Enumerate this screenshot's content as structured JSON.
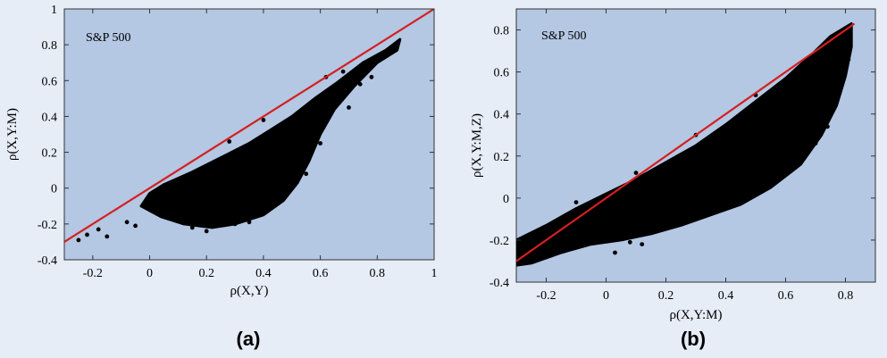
{
  "chart_data": [
    {
      "type": "scatter",
      "panel_label": "(a)",
      "annotation": "S&P 500",
      "xlabel": "ρ(X,Y)",
      "ylabel": "ρ(X,Y:M)",
      "xlim": [
        -0.3,
        1.0
      ],
      "ylim": [
        -0.4,
        1.0
      ],
      "x_ticks": [
        -0.2,
        0,
        0.2,
        0.4,
        0.6,
        0.8,
        1
      ],
      "y_ticks": [
        -0.4,
        -0.2,
        0,
        0.2,
        0.4,
        0.6,
        0.8,
        1
      ],
      "x_tick_labels": [
        "-0.2",
        "0",
        "0.2",
        "0.4",
        "0.6",
        "0.8",
        "1"
      ],
      "y_tick_labels": [
        "-0.4",
        "-0.2",
        "0",
        "0.2",
        "0.4",
        "0.6",
        "0.8",
        "1"
      ],
      "reference_line": {
        "x": [
          -0.3,
          1.0
        ],
        "y": [
          -0.3,
          1.0
        ],
        "color": "#d42020"
      },
      "point_color": "#000000",
      "background_color": "#b4c7e3",
      "point_cloud_outline": [
        [
          -0.03,
          -0.1
        ],
        [
          0.0,
          -0.03
        ],
        [
          0.05,
          0.02
        ],
        [
          0.15,
          0.09
        ],
        [
          0.25,
          0.17
        ],
        [
          0.35,
          0.25
        ],
        [
          0.42,
          0.32
        ],
        [
          0.5,
          0.4
        ],
        [
          0.58,
          0.5
        ],
        [
          0.66,
          0.59
        ],
        [
          0.75,
          0.7
        ],
        [
          0.83,
          0.77
        ],
        [
          0.88,
          0.83
        ],
        [
          0.87,
          0.77
        ],
        [
          0.8,
          0.7
        ],
        [
          0.72,
          0.57
        ],
        [
          0.65,
          0.44
        ],
        [
          0.6,
          0.3
        ],
        [
          0.56,
          0.15
        ],
        [
          0.52,
          0.03
        ],
        [
          0.47,
          -0.07
        ],
        [
          0.4,
          -0.15
        ],
        [
          0.3,
          -0.2
        ],
        [
          0.22,
          -0.22
        ],
        [
          0.12,
          -0.2
        ],
        [
          0.04,
          -0.16
        ]
      ],
      "sample_points": [
        [
          -0.25,
          -0.29
        ],
        [
          -0.22,
          -0.26
        ],
        [
          -0.18,
          -0.23
        ],
        [
          -0.15,
          -0.27
        ],
        [
          -0.08,
          -0.19
        ],
        [
          -0.05,
          -0.21
        ],
        [
          0.02,
          -0.13
        ],
        [
          0.1,
          -0.18
        ],
        [
          0.2,
          -0.24
        ],
        [
          0.3,
          -0.2
        ],
        [
          0.45,
          -0.06
        ],
        [
          0.55,
          0.08
        ],
        [
          0.6,
          0.25
        ],
        [
          0.7,
          0.45
        ],
        [
          0.78,
          0.62
        ],
        [
          0.82,
          0.74
        ],
        [
          0.86,
          0.8
        ],
        [
          0.74,
          0.58
        ],
        [
          0.5,
          0.36
        ],
        [
          0.62,
          0.62
        ],
        [
          0.68,
          0.65
        ],
        [
          0.4,
          0.38
        ],
        [
          0.28,
          0.26
        ],
        [
          0.15,
          -0.22
        ],
        [
          0.35,
          -0.19
        ]
      ]
    },
    {
      "type": "scatter",
      "panel_label": "(b)",
      "annotation": "S&P 500",
      "xlabel": "ρ(X,Y:M)",
      "ylabel": "ρ(X,Y:M,Z)",
      "xlim": [
        -0.3,
        0.9
      ],
      "ylim": [
        -0.4,
        0.9
      ],
      "x_ticks": [
        -0.2,
        0,
        0.2,
        0.4,
        0.6,
        0.8
      ],
      "y_ticks": [
        -0.4,
        -0.2,
        0,
        0.2,
        0.4,
        0.6,
        0.8
      ],
      "x_tick_labels": [
        "-0.2",
        "0",
        "0.2",
        "0.4",
        "0.6",
        "0.8"
      ],
      "y_tick_labels": [
        "-0.4",
        "-0.2",
        "0",
        "0.2",
        "0.4",
        "0.6",
        "0.8"
      ],
      "reference_line": {
        "x": [
          -0.3,
          0.83
        ],
        "y": [
          -0.3,
          0.83
        ],
        "color": "#d42020"
      },
      "point_color": "#000000",
      "background_color": "#b4c7e3",
      "point_cloud_outline": [
        [
          -0.3,
          -0.2
        ],
        [
          -0.2,
          -0.13
        ],
        [
          -0.1,
          -0.05
        ],
        [
          0.0,
          0.02
        ],
        [
          0.1,
          0.09
        ],
        [
          0.2,
          0.17
        ],
        [
          0.3,
          0.25
        ],
        [
          0.4,
          0.35
        ],
        [
          0.5,
          0.46
        ],
        [
          0.6,
          0.57
        ],
        [
          0.7,
          0.7
        ],
        [
          0.75,
          0.77
        ],
        [
          0.82,
          0.83
        ],
        [
          0.82,
          0.72
        ],
        [
          0.8,
          0.58
        ],
        [
          0.77,
          0.44
        ],
        [
          0.72,
          0.3
        ],
        [
          0.65,
          0.16
        ],
        [
          0.55,
          0.05
        ],
        [
          0.45,
          -0.03
        ],
        [
          0.35,
          -0.08
        ],
        [
          0.25,
          -0.13
        ],
        [
          0.15,
          -0.17
        ],
        [
          0.05,
          -0.2
        ],
        [
          -0.05,
          -0.22
        ],
        [
          -0.15,
          -0.26
        ],
        [
          -0.25,
          -0.31
        ],
        [
          -0.3,
          -0.32
        ]
      ],
      "sample_points": [
        [
          -0.29,
          -0.29
        ],
        [
          -0.27,
          -0.31
        ],
        [
          -0.26,
          -0.25
        ],
        [
          -0.22,
          -0.28
        ],
        [
          0.03,
          -0.26
        ],
        [
          0.08,
          -0.21
        ],
        [
          0.12,
          -0.22
        ],
        [
          0.35,
          -0.05
        ],
        [
          0.48,
          0.0
        ],
        [
          0.6,
          0.12
        ],
        [
          0.66,
          0.2
        ],
        [
          0.7,
          0.26
        ],
        [
          0.74,
          0.34
        ],
        [
          0.76,
          0.5
        ],
        [
          0.79,
          0.55
        ],
        [
          0.81,
          0.66
        ],
        [
          0.8,
          0.78
        ],
        [
          0.72,
          0.71
        ],
        [
          0.68,
          0.66
        ],
        [
          0.5,
          0.49
        ],
        [
          0.3,
          0.3
        ],
        [
          0.1,
          0.12
        ],
        [
          -0.1,
          -0.02
        ],
        [
          0.45,
          0.1
        ],
        [
          0.55,
          0.2
        ]
      ]
    }
  ]
}
